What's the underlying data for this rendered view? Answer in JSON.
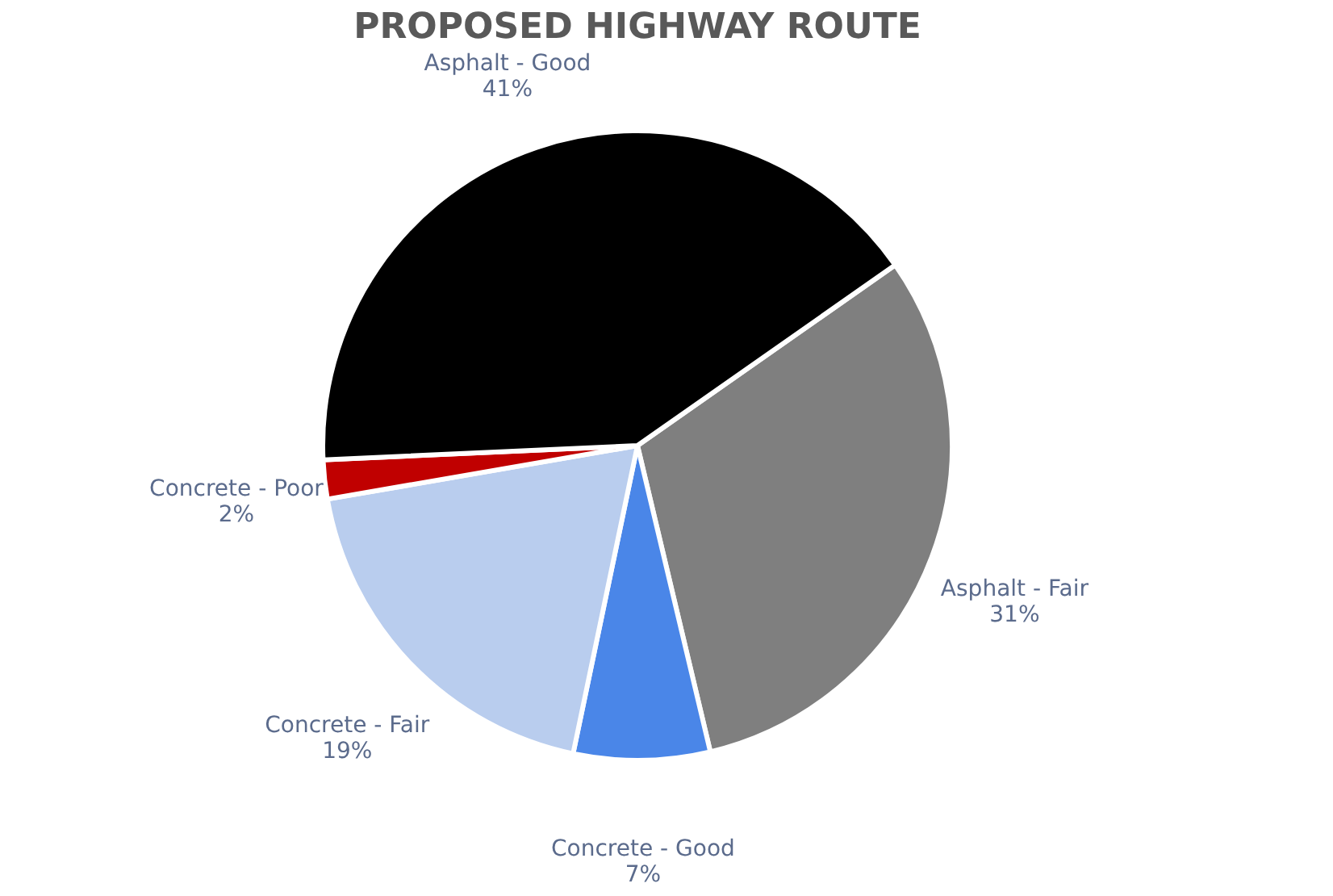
{
  "chart_data": {
    "type": "pie",
    "title": "PROPOSED HIGHWAY ROUTE",
    "categories": [
      "Asphalt - Fair",
      "Concrete - Good",
      "Concrete - Fair",
      "Concrete - Poor",
      "Asphalt - Good"
    ],
    "values": [
      31,
      7,
      19,
      2,
      41
    ],
    "value_labels": [
      "31%",
      "7%",
      "19%",
      "2%",
      "41%"
    ],
    "colors": [
      "#7f7f7f",
      "#4a86e8",
      "#b9cdee",
      "#c00000",
      "#000000"
    ]
  }
}
